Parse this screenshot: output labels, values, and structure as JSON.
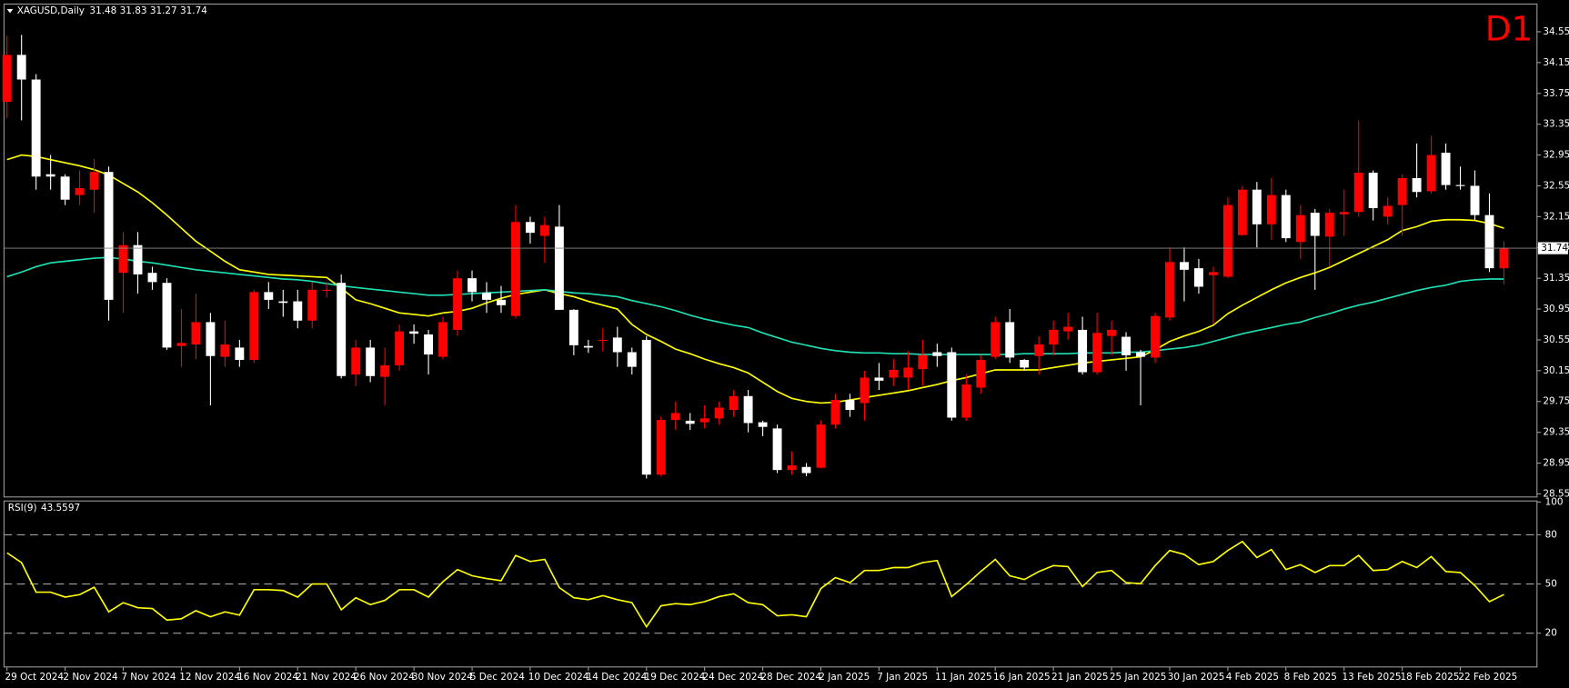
{
  "chart_data": {
    "type": "candlestick",
    "title": "XAGUSD,Daily",
    "timeframe": "D1",
    "categories": [
      "29 Oct 2024",
      null,
      null,
      null,
      "2 Nov 2024",
      null,
      null,
      null,
      "7 Nov 2024",
      null,
      null,
      null,
      "12 Nov 2024",
      null,
      null,
      null,
      "16 Nov 2024",
      null,
      null,
      null,
      "21 Nov 2024",
      null,
      null,
      null,
      "26 Nov 2024",
      null,
      null,
      null,
      "30 Nov 2024",
      null,
      null,
      null,
      "5 Dec 2024",
      null,
      null,
      null,
      "10 Dec 2024",
      null,
      null,
      null,
      "14 Dec 2024",
      null,
      null,
      null,
      "19 Dec 2024",
      null,
      null,
      null,
      "24 Dec 2024",
      null,
      null,
      null,
      "28 Dec 2024",
      null,
      null,
      null,
      "2 Jan 2025",
      null,
      null,
      null,
      "7 Jan 2025",
      null,
      null,
      null,
      "11 Jan 2025",
      null,
      null,
      null,
      "16 Jan 2025",
      null,
      null,
      null,
      "21 Jan 2025",
      null,
      null,
      null,
      "25 Jan 2025",
      null,
      null,
      null,
      "30 Jan 2025",
      null,
      null,
      null,
      "4 Feb 2025",
      null,
      null,
      null,
      "8 Feb 2025",
      null,
      null,
      null,
      "13 Feb 2025",
      null,
      null,
      null,
      "18 Feb 2025",
      null,
      null,
      null,
      "22 Feb 2025",
      null,
      null,
      null
    ],
    "open": [
      33.64,
      34.25,
      33.93,
      32.7,
      32.67,
      32.43,
      32.5,
      32.73,
      31.42,
      31.78,
      31.42,
      31.29,
      30.47,
      30.49,
      30.78,
      30.33,
      30.45,
      30.29,
      31.17,
      31.05,
      31.05,
      30.8,
      31.2,
      31.29,
      30.1,
      30.45,
      30.07,
      30.22,
      30.66,
      30.62,
      30.33,
      30.68,
      31.35,
      31.16,
      31.07,
      30.86,
      32.08,
      31.9,
      32.02,
      30.94,
      30.47,
      30.55,
      30.58,
      30.39,
      30.55,
      28.8,
      29.51,
      29.5,
      29.48,
      29.53,
      29.64,
      29.82,
      29.48,
      29.4,
      28.86,
      28.9,
      28.89,
      29.45,
      29.77,
      29.73,
      30.06,
      30.06,
      30.06,
      30.17,
      30.39,
      30.39,
      29.54,
      29.93,
      30.33,
      30.78,
      30.29,
      30.34,
      30.49,
      30.66,
      30.68,
      30.13,
      30.6,
      30.59,
      30.39,
      30.32,
      30.84,
      31.56,
      31.48,
      31.39,
      31.37,
      31.91,
      32.5,
      32.05,
      32.43,
      31.82,
      32.2,
      31.89,
      32.18,
      32.21,
      32.72,
      32.15,
      32.3,
      32.65,
      32.48,
      32.98,
      32.56,
      32.55,
      32.17,
      31.48
    ],
    "high": [
      34.5,
      34.51,
      34.0,
      32.95,
      32.7,
      32.75,
      32.9,
      32.8,
      31.95,
      31.95,
      31.5,
      31.35,
      30.95,
      31.15,
      30.9,
      30.8,
      30.55,
      31.2,
      31.3,
      31.2,
      31.2,
      31.3,
      31.3,
      31.4,
      30.55,
      30.55,
      30.45,
      30.75,
      30.75,
      30.68,
      30.85,
      31.45,
      31.45,
      31.3,
      31.25,
      32.3,
      32.15,
      32.15,
      32.3,
      30.95,
      30.55,
      30.7,
      30.72,
      30.45,
      30.6,
      29.55,
      29.75,
      29.6,
      29.7,
      29.75,
      29.9,
      29.9,
      29.5,
      29.45,
      29.1,
      28.95,
      29.5,
      29.85,
      29.85,
      30.15,
      30.25,
      30.3,
      30.4,
      30.55,
      30.5,
      30.45,
      30.1,
      30.35,
      30.85,
      30.95,
      30.3,
      30.6,
      30.8,
      30.9,
      30.85,
      30.9,
      30.8,
      30.65,
      30.42,
      30.9,
      31.75,
      31.75,
      31.6,
      31.5,
      32.4,
      32.55,
      32.6,
      32.65,
      32.5,
      32.3,
      32.25,
      32.25,
      32.5,
      33.4,
      32.75,
      32.4,
      32.7,
      33.1,
      33.2,
      33.1,
      32.8,
      32.75,
      32.45,
      31.83
    ],
    "low": [
      33.43,
      33.4,
      32.5,
      32.5,
      32.3,
      32.3,
      32.2,
      30.8,
      30.9,
      31.15,
      31.2,
      30.42,
      30.2,
      30.3,
      29.7,
      30.2,
      30.2,
      30.25,
      30.95,
      30.85,
      30.7,
      30.7,
      31.1,
      30.05,
      29.95,
      30.0,
      29.7,
      30.15,
      30.5,
      30.1,
      30.3,
      30.6,
      31.05,
      30.9,
      30.9,
      30.83,
      31.8,
      31.55,
      30.94,
      30.35,
      30.38,
      30.4,
      30.2,
      30.1,
      28.75,
      28.78,
      29.38,
      29.38,
      29.4,
      29.45,
      29.55,
      29.35,
      29.3,
      28.82,
      28.8,
      28.78,
      28.88,
      29.4,
      29.55,
      29.5,
      29.9,
      29.95,
      29.9,
      29.95,
      30.2,
      29.5,
      29.5,
      29.85,
      30.3,
      30.25,
      30.15,
      30.1,
      30.35,
      30.55,
      30.1,
      30.1,
      30.35,
      30.15,
      29.7,
      30.25,
      30.8,
      31.05,
      31.15,
      30.75,
      31.35,
      31.9,
      31.75,
      31.85,
      31.82,
      31.6,
      31.2,
      31.5,
      31.9,
      32.15,
      32.1,
      32.05,
      31.9,
      32.4,
      32.45,
      32.5,
      32.5,
      32.1,
      31.43,
      31.27
    ],
    "close": [
      34.25,
      33.93,
      32.67,
      32.67,
      32.37,
      32.52,
      32.73,
      31.07,
      31.78,
      31.4,
      31.3,
      30.45,
      30.51,
      30.78,
      30.34,
      30.49,
      30.29,
      31.17,
      31.07,
      31.03,
      30.8,
      31.2,
      31.2,
      30.08,
      30.45,
      30.08,
      30.22,
      30.66,
      30.63,
      30.36,
      30.78,
      31.35,
      31.17,
      31.07,
      31.0,
      32.08,
      31.94,
      32.04,
      30.94,
      30.48,
      30.45,
      30.55,
      30.39,
      30.2,
      28.8,
      29.51,
      29.6,
      29.46,
      29.53,
      29.67,
      29.82,
      29.47,
      29.42,
      28.86,
      28.92,
      28.82,
      29.45,
      29.77,
      29.64,
      30.06,
      30.02,
      30.16,
      30.19,
      30.35,
      30.34,
      29.54,
      29.97,
      30.29,
      30.78,
      30.32,
      30.19,
      30.49,
      30.68,
      30.72,
      30.13,
      30.64,
      30.68,
      30.35,
      30.33,
      30.86,
      31.56,
      31.46,
      31.24,
      31.43,
      32.3,
      32.5,
      32.05,
      32.43,
      31.87,
      32.17,
      31.9,
      32.2,
      32.21,
      32.72,
      32.26,
      32.29,
      32.65,
      32.47,
      32.95,
      32.56,
      32.55,
      32.17,
      31.48,
      31.74
    ],
    "up_color": "#ff0000",
    "down_color": "#ffffff",
    "ylim": [
      28.51,
      34.91
    ],
    "yticks": [
      34.55,
      34.15,
      33.75,
      33.35,
      32.95,
      32.55,
      32.15,
      31.75,
      31.35,
      30.95,
      30.55,
      30.15,
      29.75,
      29.35,
      28.95,
      28.55
    ],
    "overlays": [
      {
        "color": "#ffff00",
        "values": [
          32.89,
          32.95,
          32.93,
          32.89,
          32.85,
          32.81,
          32.76,
          32.69,
          32.58,
          32.47,
          32.33,
          32.17,
          32.0,
          31.83,
          31.7,
          31.57,
          31.46,
          31.43,
          31.4,
          31.39,
          31.38,
          31.37,
          31.36,
          31.22,
          31.07,
          31.02,
          30.96,
          30.9,
          30.88,
          30.86,
          30.9,
          30.92,
          30.96,
          31.03,
          31.09,
          31.14,
          31.17,
          31.2,
          31.15,
          31.11,
          31.05,
          31.0,
          30.95,
          30.75,
          30.62,
          30.53,
          30.43,
          30.37,
          30.3,
          30.24,
          30.19,
          30.12,
          30.0,
          29.88,
          29.79,
          29.75,
          29.73,
          29.74,
          29.77,
          29.8,
          29.83,
          29.86,
          29.89,
          29.93,
          29.97,
          30.02,
          30.06,
          30.11,
          30.16,
          30.16,
          30.16,
          30.16,
          30.19,
          30.22,
          30.25,
          30.27,
          30.29,
          30.31,
          30.33,
          30.42,
          30.53,
          30.6,
          30.66,
          30.74,
          30.89,
          31.0,
          31.1,
          31.2,
          31.29,
          31.36,
          31.42,
          31.49,
          31.58,
          31.67,
          31.76,
          31.85,
          31.97,
          32.02,
          32.09,
          32.11,
          32.11,
          32.1,
          32.06,
          32.0
        ]
      },
      {
        "color": "#1ee0b4",
        "values": [
          31.37,
          31.43,
          31.5,
          31.55,
          31.57,
          31.59,
          31.61,
          31.62,
          31.6,
          31.57,
          31.55,
          31.52,
          31.49,
          31.46,
          31.44,
          31.42,
          31.4,
          31.38,
          31.36,
          31.34,
          31.33,
          31.31,
          31.28,
          31.25,
          31.23,
          31.21,
          31.19,
          31.17,
          31.15,
          31.13,
          31.13,
          31.14,
          31.15,
          31.16,
          31.17,
          31.18,
          31.19,
          31.2,
          31.18,
          31.16,
          31.15,
          31.13,
          31.11,
          31.06,
          31.02,
          30.98,
          30.93,
          30.87,
          30.82,
          30.78,
          30.74,
          30.71,
          30.64,
          30.58,
          30.52,
          30.48,
          30.44,
          30.41,
          30.39,
          30.38,
          30.38,
          30.37,
          30.37,
          30.36,
          30.36,
          30.36,
          30.36,
          30.36,
          30.36,
          30.36,
          30.37,
          30.37,
          30.37,
          30.37,
          30.38,
          30.38,
          30.38,
          30.39,
          30.39,
          30.41,
          30.43,
          30.45,
          30.48,
          30.53,
          30.58,
          30.63,
          30.67,
          30.71,
          30.75,
          30.78,
          30.84,
          30.89,
          30.95,
          31.0,
          31.04,
          31.09,
          31.14,
          31.19,
          31.23,
          31.26,
          31.31,
          31.33,
          31.34,
          31.34
        ]
      }
    ],
    "indicator": {
      "type": "line",
      "label": "RSI(9)",
      "color": "#ffff00",
      "ylim": [
        0,
        100
      ],
      "yticks": [
        100,
        80,
        50,
        20
      ],
      "values": [
        69,
        63,
        45,
        45,
        42,
        43.5,
        48,
        33,
        38.6,
        35.5,
        35,
        28,
        28.8,
        33.7,
        30,
        33,
        31,
        46.5,
        46.5,
        46,
        42,
        50,
        50,
        34.3,
        41.6,
        37.4,
        40,
        46.5,
        46.5,
        42,
        51.4,
        58.8,
        55,
        53.3,
        52,
        67.4,
        63.7,
        65,
        47.8,
        41.6,
        40.4,
        42.9,
        40.4,
        38.6,
        23.9,
        36.7,
        38,
        37.4,
        39.2,
        42.3,
        44,
        38.6,
        37.4,
        30.6,
        31.2,
        30,
        47.2,
        53.9,
        50.8,
        58.2,
        58.2,
        60,
        60,
        63,
        64.3,
        42.3,
        49.6,
        57.6,
        65,
        55,
        52.7,
        57.6,
        61.2,
        60.6,
        48.4,
        57,
        58.2,
        50.8,
        50.2,
        61.2,
        70.4,
        68,
        61.8,
        63.7,
        70.4,
        75.9,
        66.1,
        71,
        58.8,
        61.8,
        57,
        61.2,
        61.2,
        67.4,
        58.2,
        58.8,
        63.7,
        60,
        66.7,
        57.6,
        57,
        49,
        39.2,
        43.5597
      ]
    }
  }
}
